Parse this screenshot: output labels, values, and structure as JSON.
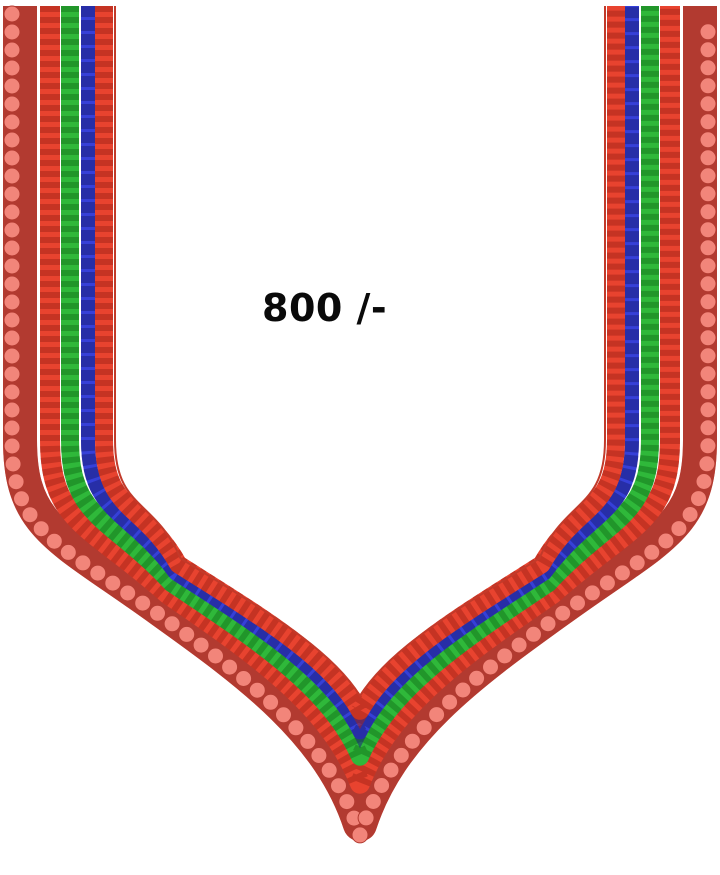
{
  "price_label": "800 /-",
  "colors": {
    "background": "#ffffff",
    "scallop_fill": "#f2857a",
    "scallop_stroke": "#b23a30",
    "red_band": "#e8432f",
    "red_band_dark": "#a8261a",
    "green_band": "#2fb83a",
    "green_band_dark": "#167a1e",
    "blue_beads": "#3640d8",
    "blue_beads_dark": "#1b1f80",
    "outline": "#c23a2a"
  },
  "motif": {
    "description_icon": "embroidery-neckline-icon",
    "band_order": [
      "scallop",
      "red",
      "green",
      "blue-beads",
      "red",
      "outline"
    ]
  }
}
